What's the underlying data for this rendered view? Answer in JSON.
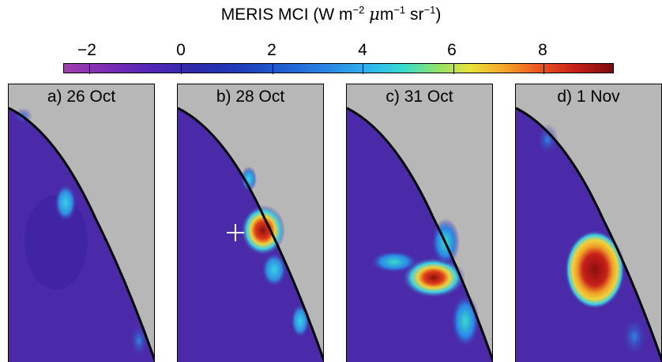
{
  "colorbar": {
    "title_main": "MERIS MCI (W m",
    "sup1": "−2",
    "mu": "μ",
    "m": "m",
    "sup2": "−1",
    "sr": " sr",
    "sup3": "−1",
    "close": ")",
    "ticks": [
      "−2",
      "0",
      "2",
      "4",
      "6",
      "8"
    ],
    "range": [
      -3,
      9
    ]
  },
  "panels": [
    {
      "label": "a) 26 Oct"
    },
    {
      "label": "b) 28 Oct"
    },
    {
      "label": "c) 31 Oct"
    },
    {
      "label": "d) 1 Nov"
    }
  ],
  "colors": {
    "land": "#b7b7b7",
    "water": "#4a2aa8",
    "coast": "#000000",
    "bloom_high": "#8a0f0f",
    "bloom_mid": "#f0d23a",
    "bloom_low": "#2fb8e8"
  }
}
